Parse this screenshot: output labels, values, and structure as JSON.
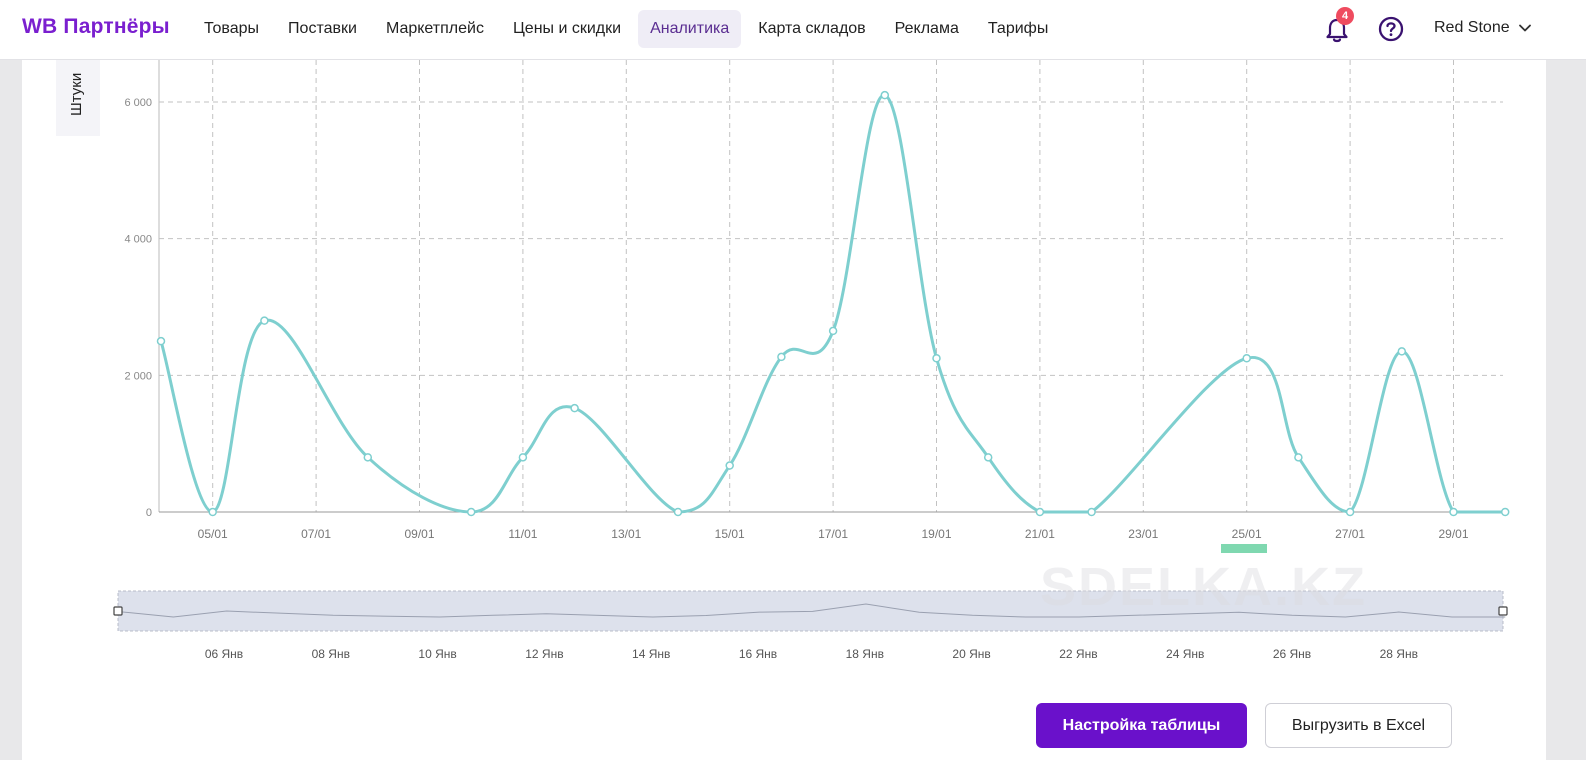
{
  "header": {
    "brand": "WB Партнёры",
    "nav": [
      {
        "label": "Товары",
        "active": false
      },
      {
        "label": "Поставки",
        "active": false
      },
      {
        "label": "Маркетплейс",
        "active": false
      },
      {
        "label": "Цены и скидки",
        "active": false
      },
      {
        "label": "Аналитика",
        "active": true
      },
      {
        "label": "Карта складов",
        "active": false
      },
      {
        "label": "Реклама",
        "active": false
      },
      {
        "label": "Тарифы",
        "active": false
      }
    ],
    "notifications_count": "4",
    "user_name": "Red Stone",
    "icons": [
      "bell-icon",
      "help-icon",
      "chevron-down-icon"
    ]
  },
  "chart": {
    "y_unit_label": "Штуки",
    "accent_color": "#7ecfcf"
  },
  "chart_data": {
    "type": "line",
    "ylabel": "Штуки",
    "ylim": [
      0,
      6600
    ],
    "y_ticks": [
      "0",
      "2 000",
      "4 000",
      "6 000"
    ],
    "y_tick_values": [
      0,
      2000,
      4000,
      6000
    ],
    "x_ticks": [
      "05/01",
      "07/01",
      "09/01",
      "11/01",
      "13/01",
      "15/01",
      "17/01",
      "19/01",
      "21/01",
      "23/01",
      "25/01",
      "27/01",
      "29/01"
    ],
    "x": [
      "04/01",
      "05/01",
      "06/01",
      "08/01",
      "10/01",
      "11/01",
      "12/01",
      "14/01",
      "15/01",
      "16/01",
      "17/01",
      "18/01",
      "19/01",
      "20/01",
      "21/01",
      "22/01",
      "25/01",
      "26/01",
      "27/01",
      "28/01",
      "29/01",
      "30/01"
    ],
    "series": [
      {
        "values": [
          2500,
          0,
          2800,
          800,
          0,
          800,
          1520,
          0,
          680,
          2270,
          2650,
          6100,
          2250,
          800,
          0,
          0,
          2250,
          800,
          0,
          2350,
          0,
          0
        ]
      }
    ],
    "grid": true,
    "navigator_ticks": [
      "06 Янв",
      "08 Янв",
      "10 Янв",
      "12 Янв",
      "14 Янв",
      "16 Янв",
      "18 Янв",
      "20 Янв",
      "22 Янв",
      "24 Янв",
      "26 Янв",
      "28 Янв"
    ]
  },
  "actions": {
    "table_settings": "Настройка таблицы",
    "export_excel": "Выгрузить в Excel"
  },
  "watermark": "SDELKA.KZ"
}
